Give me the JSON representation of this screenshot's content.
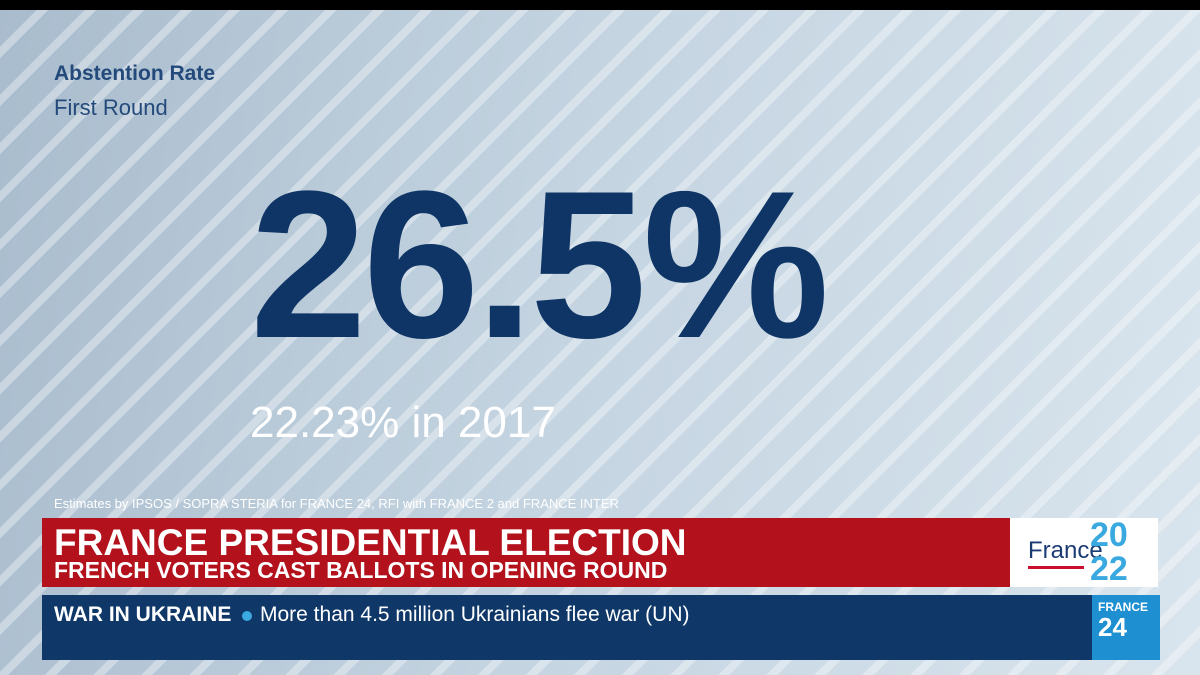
{
  "graphic": {
    "title": "Abstention Rate",
    "subtitle": "First Round",
    "headline_value": "26.5%",
    "comparison": "22.23% in 2017",
    "source": "Estimates by IPSOS / SOPRA STERIA for FRANCE 24, RFI with FRANCE 2 and FRANCE INTER"
  },
  "banner": {
    "title": "FRANCE PRESIDENTIAL ELECTION",
    "subtitle": "FRENCH VOTERS CAST BALLOTS IN OPENING ROUND",
    "logo": {
      "word": "France",
      "top": "20",
      "bottom": "22"
    }
  },
  "ticker": {
    "label": "WAR IN UKRAINE",
    "text": "More than 4.5 million Ukrainians flee war (UN)",
    "logo": {
      "top": "FRANCE",
      "bottom": "24"
    }
  }
}
